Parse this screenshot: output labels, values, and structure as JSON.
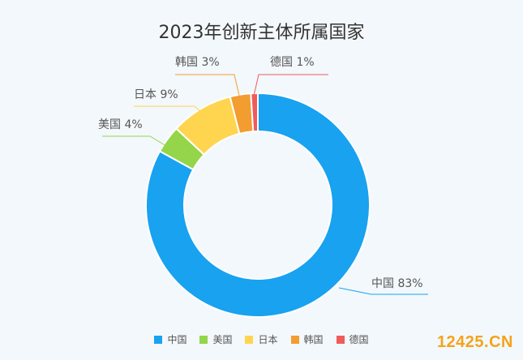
{
  "chart_data": {
    "type": "pie",
    "title": "2023年创新主体所属国家",
    "donut": true,
    "slices": [
      {
        "name": "中国",
        "value": 83,
        "label": "中国 83%",
        "color": "#18a2f0"
      },
      {
        "name": "美国",
        "value": 4,
        "label": "美国 4%",
        "color": "#94d549"
      },
      {
        "name": "日本",
        "value": 9,
        "label": "日本 9%",
        "color": "#ffd54f"
      },
      {
        "name": "韩国",
        "value": 3,
        "label": "韩国 3%",
        "color": "#f39c30"
      },
      {
        "name": "德国",
        "value": 1,
        "label": "德国 1%",
        "color": "#f05b5b"
      }
    ],
    "legend": {
      "placement": "bottom-center"
    }
  },
  "watermark": "12425.CN"
}
